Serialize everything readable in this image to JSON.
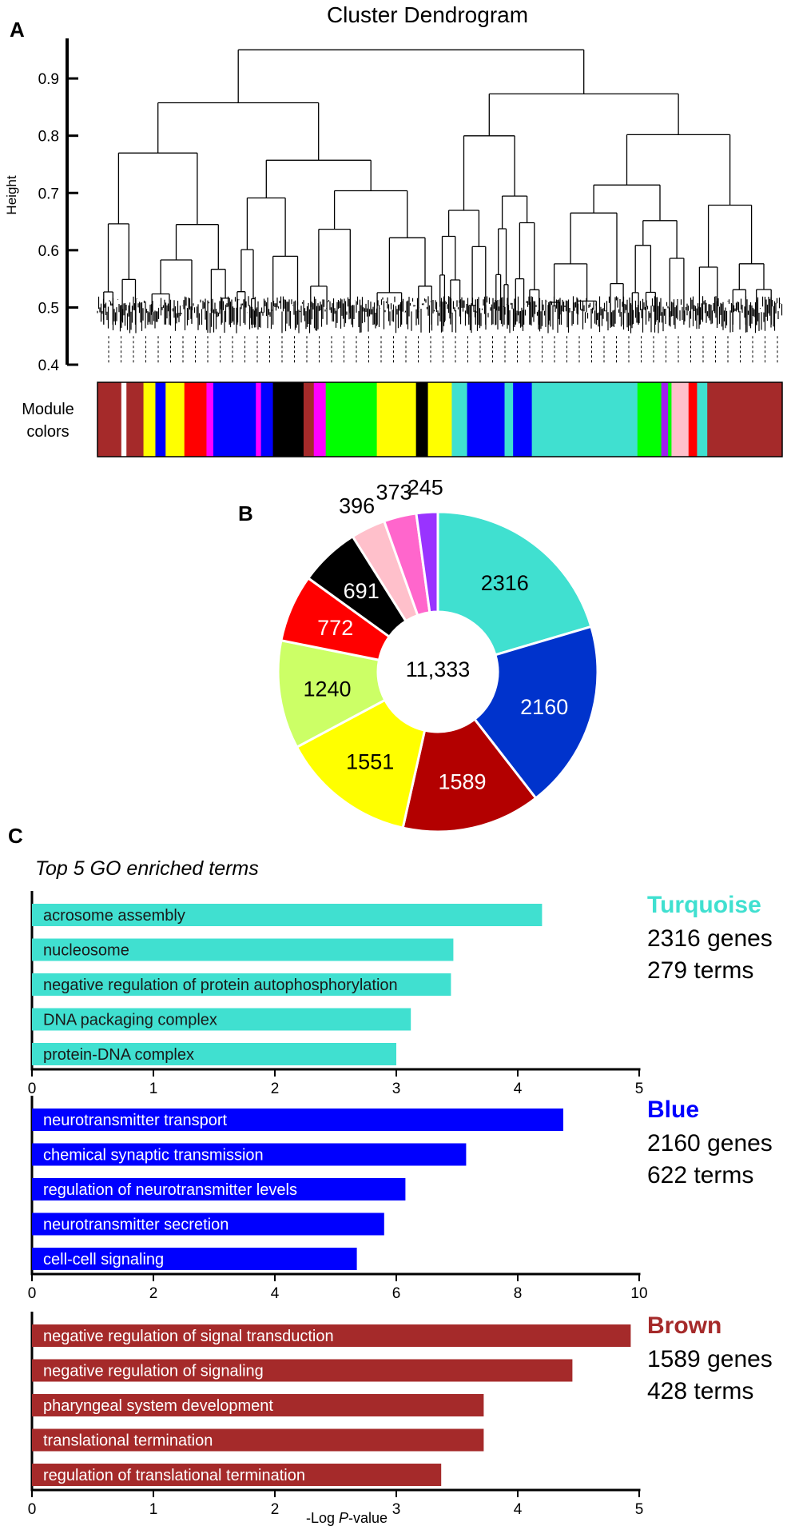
{
  "panels": {
    "a": "A",
    "b": "B",
    "c": "C"
  },
  "chart_data": [
    {
      "type": "dendrogram",
      "title": "Cluster Dendrogram",
      "ylabel": "Height",
      "ylim": [
        0.4,
        0.97
      ],
      "yticks": [
        0.4,
        0.5,
        0.6,
        0.7,
        0.8,
        0.9
      ],
      "module_colors_label": [
        "Module",
        "colors"
      ],
      "module_colors": [
        "#a52a2a",
        "#ffffff",
        "#a52a2a",
        "#ffff00",
        "#0000ff",
        "#ffff00",
        "#ff0000",
        "#ff00ff",
        "#0000ff",
        "#ff00ff",
        "#0000ff",
        "#000000",
        "#a52a2a",
        "#ff00ff",
        "#00ff00",
        "#ffff00",
        "#000000",
        "#ffff00",
        "#40e0d0",
        "#0000ff",
        "#40e0d0",
        "#0000ff",
        "#40e0d0",
        "#00ff00",
        "#a020f0",
        "#00ff00",
        "#ffc0cb",
        "#ff0000",
        "#40e0d0",
        "#a52a2a"
      ]
    },
    {
      "type": "pie",
      "center_label": "11,333",
      "labels": [
        "turquoise",
        "blue",
        "brown",
        "yellow",
        "greenyellow",
        "red",
        "black",
        "pink",
        "magenta",
        "purple"
      ],
      "values": [
        2316,
        2160,
        1589,
        1551,
        1240,
        772,
        691,
        396,
        373,
        245
      ],
      "colors": [
        "#40e0d0",
        "#0033cc",
        "#b30000",
        "#ffff00",
        "#ccff66",
        "#ff0000",
        "#000000",
        "#ffc0cb",
        "#ff66cc",
        "#9933ff"
      ],
      "value_labels": [
        "2316",
        "2160",
        "1589",
        "1551",
        "1240",
        "772",
        "691",
        "396",
        "373",
        "245"
      ]
    },
    {
      "type": "bar",
      "orientation": "horizontal",
      "title": "Top 5 GO enriched terms",
      "xlabel": "-Log P-value",
      "xlabel_parts": [
        "-Log ",
        "P",
        "-value"
      ],
      "modules": [
        {
          "name": "Turquoise",
          "genes": "2316 genes",
          "terms_count": "279 terms",
          "color": "#40e0d0",
          "xlim": [
            0,
            5
          ],
          "xticks": [
            "0",
            "1",
            "2",
            "3",
            "4",
            "5"
          ],
          "categories": [
            "acrosome assembly",
            "nucleosome",
            "negative regulation of protein autophosphorylation",
            "DNA packaging complex",
            "protein-DNA complex"
          ],
          "values": [
            4.2,
            3.47,
            3.45,
            3.12,
            3.0
          ]
        },
        {
          "name": "Blue",
          "genes": "2160 genes",
          "terms_count": "622 terms",
          "color": "#0000ff",
          "xlim": [
            0,
            10
          ],
          "xticks": [
            "0",
            "2",
            "4",
            "6",
            "8",
            "10"
          ],
          "categories": [
            "neurotransmitter transport",
            "chemical synaptic transmission",
            "regulation of neurotransmitter levels",
            "neurotransmitter secretion",
            "cell-cell signaling"
          ],
          "values": [
            8.75,
            7.15,
            6.15,
            5.8,
            5.35
          ]
        },
        {
          "name": "Brown",
          "genes": "1589 genes",
          "terms_count": "428 terms",
          "color": "#a52a2a",
          "xlim": [
            0,
            5
          ],
          "xticks": [
            "0",
            "1",
            "2",
            "3",
            "4",
            "5"
          ],
          "categories": [
            "negative regulation of signal transduction",
            "negative regulation of signaling",
            "pharyngeal system development",
            "translational termination",
            "regulation of translational termination"
          ],
          "values": [
            4.93,
            4.45,
            3.72,
            3.72,
            3.37
          ]
        }
      ]
    }
  ]
}
